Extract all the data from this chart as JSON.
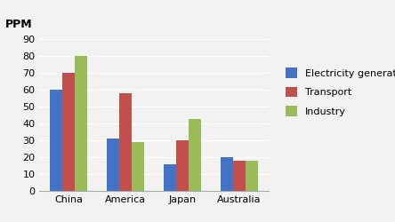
{
  "categories": [
    "China",
    "America",
    "Japan",
    "Australia"
  ],
  "series": {
    "Electricity generation": [
      60,
      31,
      16,
      20
    ],
    "Transport": [
      70,
      58,
      30,
      18
    ],
    "Industry": [
      80,
      29,
      43,
      18
    ]
  },
  "colors": {
    "Electricity generation": "#4472C4",
    "Transport": "#C0504D",
    "Industry": "#9BBB59"
  },
  "ylabel": "PPM",
  "ylim": [
    0,
    95
  ],
  "yticks": [
    0,
    10,
    20,
    30,
    40,
    50,
    60,
    70,
    80,
    90
  ],
  "background_color": "#F2F2F2",
  "plot_bg_color": "#F2F2F2",
  "grid_color": "#FFFFFF",
  "bar_width": 0.22,
  "legend_fontsize": 8,
  "axis_fontsize": 8,
  "ylabel_fontsize": 9
}
